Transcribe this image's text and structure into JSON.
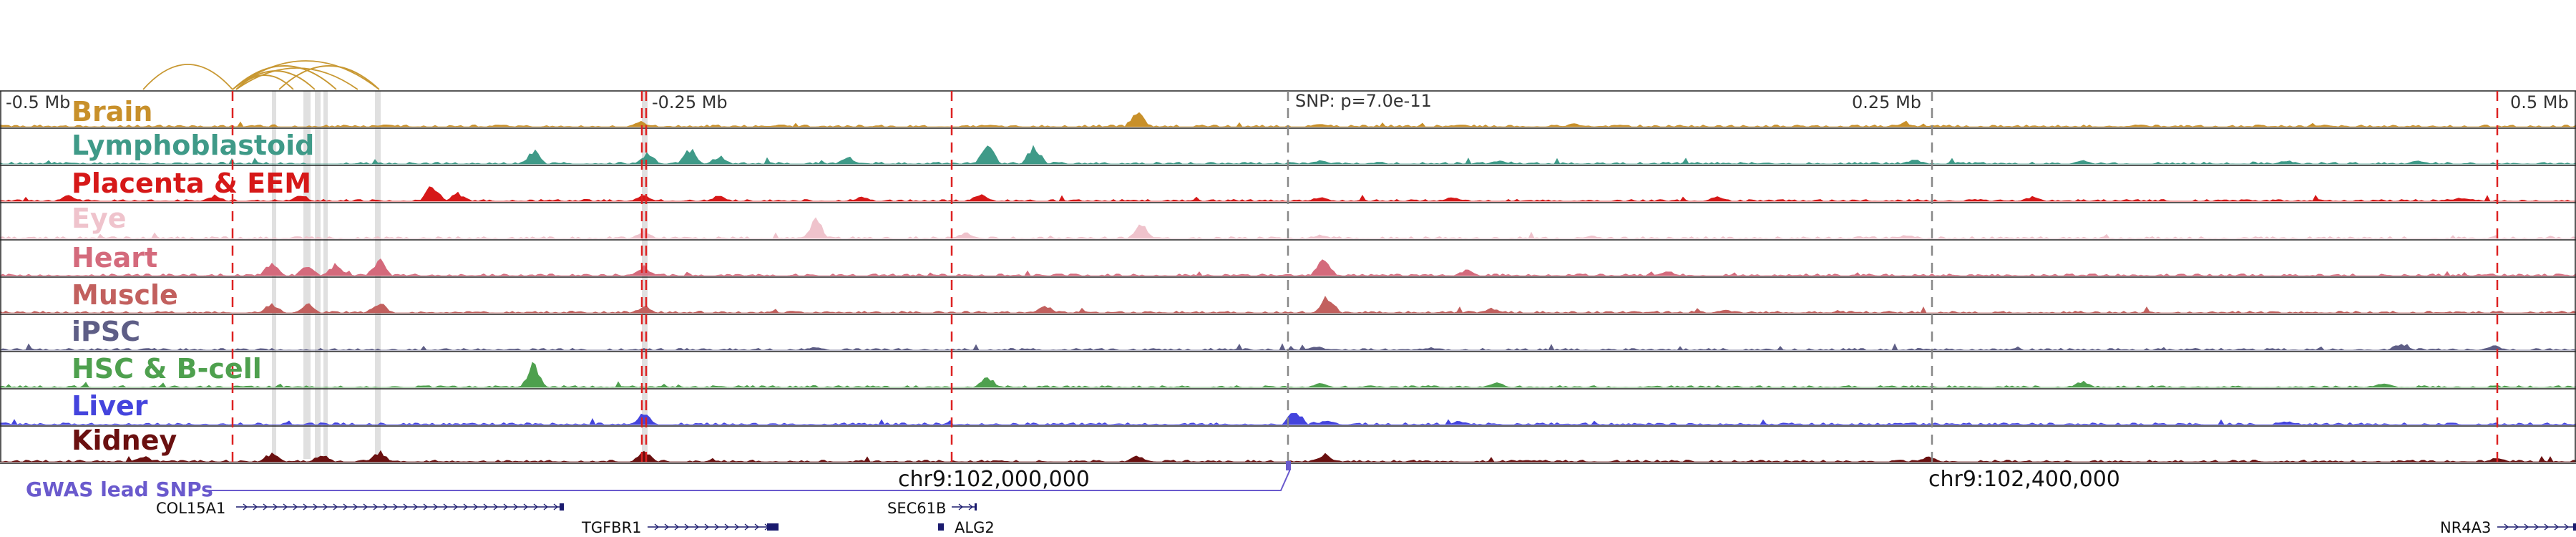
{
  "axis": {
    "left_label": "-0.5 Mb",
    "q1_label": "-0.25 Mb",
    "snp_label": "SNP: p=7.0e-11",
    "q3_label": "0.25 Mb",
    "right_label": "0.5 Mb"
  },
  "tracks": [
    {
      "name": "Brain",
      "color": "#c8902a"
    },
    {
      "name": "Lymphoblastoid",
      "color": "#3f9a88"
    },
    {
      "name": "Placenta & EEM",
      "color": "#d61818"
    },
    {
      "name": "Eye",
      "color": "#efc3cc"
    },
    {
      "name": "Heart",
      "color": "#d46a7c"
    },
    {
      "name": "Muscle",
      "color": "#c2605e"
    },
    {
      "name": "iPSC",
      "color": "#5e5e86"
    },
    {
      "name": "HSC & B-cell",
      "color": "#4ea04e"
    },
    {
      "name": "Liver",
      "color": "#4444dd"
    },
    {
      "name": "Kidney",
      "color": "#6a1010"
    }
  ],
  "gwas": {
    "label": "GWAS lead SNPs",
    "color": "#6a5acd"
  },
  "coordinates": {
    "left": "chr9:102,000,000",
    "right": "chr9:102,400,000"
  },
  "genes": [
    "COL15A1",
    "TGFBR1",
    "SEC61B",
    "ALG2",
    "NR4A3"
  ],
  "colors": {
    "loop": "#c89832",
    "red_marker": "#dd2222",
    "gray_marker": "#888888",
    "gene_feature": "#1a1a6e",
    "highlight": "#d6d6d6"
  }
}
